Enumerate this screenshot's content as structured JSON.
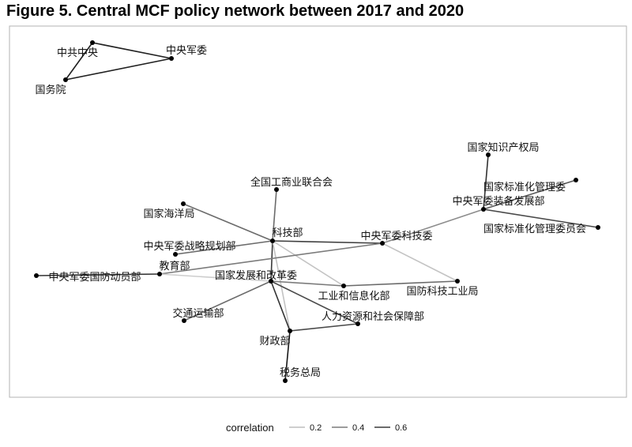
{
  "figure": {
    "title": "Figure 5. Central MCF policy network between 2017 and 2020"
  },
  "nodes": [
    {
      "id": "zgzy",
      "label": "中共中央"
    },
    {
      "id": "zyjw",
      "label": "中央军委"
    },
    {
      "id": "gwy",
      "label": "国务院"
    },
    {
      "id": "zscq",
      "label": "国家知识产权局"
    },
    {
      "id": "bzgl",
      "label": "国家标准化管理委"
    },
    {
      "id": "zbfz",
      "label": "中央军委装备发展部"
    },
    {
      "id": "bzwyh",
      "label": "国家标准化管理委员会"
    },
    {
      "id": "gsl",
      "label": "全国工商业联合会"
    },
    {
      "id": "hyj",
      "label": "国家海洋局"
    },
    {
      "id": "kjb",
      "label": "科技部"
    },
    {
      "id": "kjw",
      "label": "中央军委科技委"
    },
    {
      "id": "zlgh",
      "label": "中央军委战略规划部"
    },
    {
      "id": "jyb",
      "label": "教育部"
    },
    {
      "id": "gfdy",
      "label": "中央军委国防动员部"
    },
    {
      "id": "fgw",
      "label": "国家发展和改革委"
    },
    {
      "id": "gxb",
      "label": "工业和信息化部"
    },
    {
      "id": "gfkj",
      "label": "国防科技工业局"
    },
    {
      "id": "jtys",
      "label": "交通运输部"
    },
    {
      "id": "rlzy",
      "label": "人力资源和社会保障部"
    },
    {
      "id": "czb",
      "label": "财政部"
    },
    {
      "id": "swzj",
      "label": "税务总局"
    }
  ],
  "edges": [
    {
      "source": "zgzy",
      "target": "zyjw",
      "correlation": 0.68
    },
    {
      "source": "zyjw",
      "target": "gwy",
      "correlation": 0.68
    },
    {
      "source": "gwy",
      "target": "zgzy",
      "correlation": 0.68
    },
    {
      "source": "zscq",
      "target": "zbfz",
      "correlation": 0.62
    },
    {
      "source": "bzgl",
      "target": "zbfz",
      "correlation": 0.5
    },
    {
      "source": "zbfz",
      "target": "bzwyh",
      "correlation": 0.55
    },
    {
      "source": "zbfz",
      "target": "kjw",
      "correlation": 0.35
    },
    {
      "source": "gsl",
      "target": "kjb",
      "correlation": 0.45
    },
    {
      "source": "hyj",
      "target": "kjb",
      "correlation": 0.45
    },
    {
      "source": "kjb",
      "target": "kjw",
      "correlation": 0.58
    },
    {
      "source": "kjb",
      "target": "zlgh",
      "correlation": 0.45
    },
    {
      "source": "kjb",
      "target": "fgw",
      "correlation": 0.6
    },
    {
      "source": "kjb",
      "target": "gxb",
      "correlation": 0.18
    },
    {
      "source": "kjb",
      "target": "czb",
      "correlation": 0.18
    },
    {
      "source": "kjw",
      "target": "jyb",
      "correlation": 0.4
    },
    {
      "source": "kjw",
      "target": "gfkj",
      "correlation": 0.18
    },
    {
      "source": "gfdy",
      "target": "jyb",
      "correlation": 0.62
    },
    {
      "source": "jyb",
      "target": "fgw",
      "correlation": 0.15
    },
    {
      "source": "fgw",
      "target": "gxb",
      "correlation": 0.4
    },
    {
      "source": "fgw",
      "target": "jtys",
      "correlation": 0.45
    },
    {
      "source": "fgw",
      "target": "rlzy",
      "correlation": 0.55
    },
    {
      "source": "fgw",
      "target": "czb",
      "correlation": 0.62
    },
    {
      "source": "gxb",
      "target": "gfkj",
      "correlation": 0.45
    },
    {
      "source": "czb",
      "target": "rlzy",
      "correlation": 0.55
    },
    {
      "source": "czb",
      "target": "swzj",
      "correlation": 0.7
    }
  ],
  "legend": {
    "title": "correlation",
    "items": [
      {
        "label": "0.2",
        "value": 0.2
      },
      {
        "label": "0.4",
        "value": 0.4
      },
      {
        "label": "0.6",
        "value": 0.6
      }
    ]
  },
  "colors": {
    "edge_low": "#cfcfcf",
    "edge_high": "#1a1a1a",
    "node": "#000000",
    "panel_border": "#b3b3b3"
  }
}
